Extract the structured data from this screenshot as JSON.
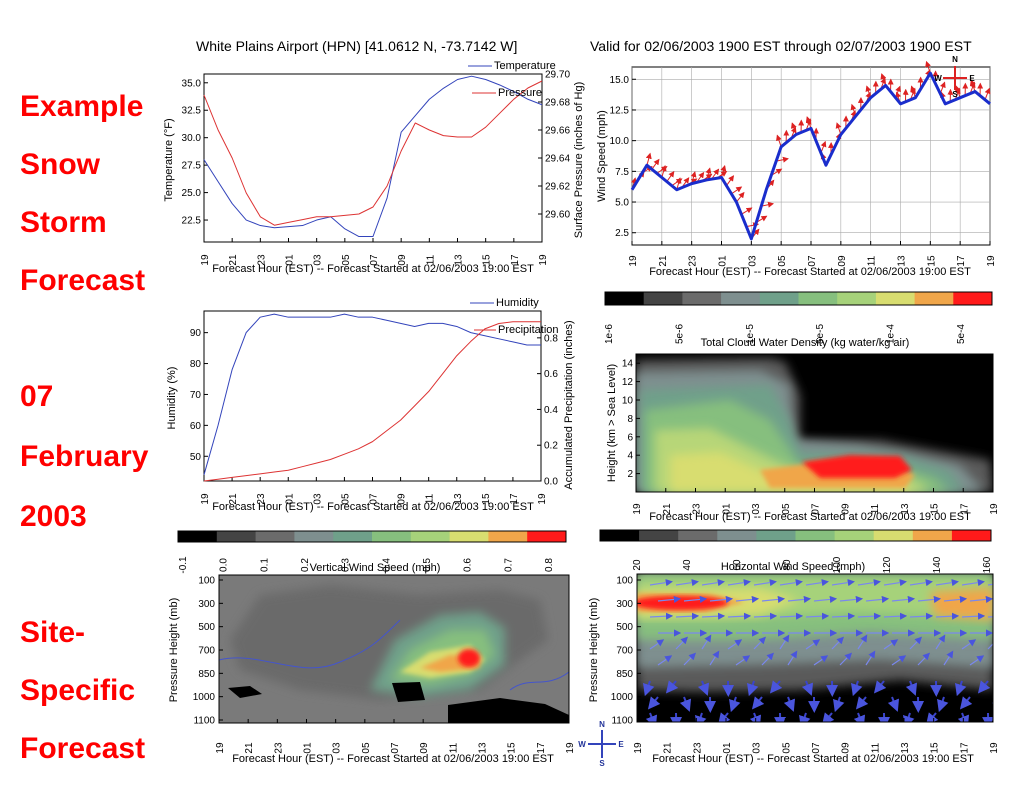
{
  "header": {
    "station": "White Plains Airport (HPN) [41.0612 N, -73.7142 W]",
    "valid": "Valid for 02/06/2003 1900 EST through 02/07/2003 1900 EST"
  },
  "side_labels": [
    "Example",
    "Snow",
    "Storm",
    "Forecast",
    "07",
    "February",
    "2003",
    "Site-",
    "Specific",
    "Forecast"
  ],
  "compass": {
    "n": "N",
    "s": "S",
    "w": "W",
    "e": "E"
  },
  "shared": {
    "x_ticks": [
      "19",
      "21",
      "23",
      "01",
      "03",
      "05",
      "07",
      "09",
      "11",
      "13",
      "15",
      "17",
      "19"
    ],
    "x_label": "Forecast Hour (EST) -- Forecast Started at 02/06/2003 19:00 EST"
  },
  "chart_data": [
    {
      "id": "temp_pressure",
      "type": "line",
      "x": [
        19,
        20,
        21,
        22,
        23,
        24,
        25,
        26,
        27,
        28,
        29,
        30,
        31,
        32,
        33,
        34,
        35,
        36,
        37,
        38,
        39,
        40,
        41,
        42,
        43
      ],
      "ylabel": "Temperature (°F)",
      "y2label": "Surface Pressure (inches of Hg)",
      "ylim": [
        20.5,
        35.8
      ],
      "y_ticks": [
        22.5,
        25.0,
        27.5,
        30.0,
        32.5,
        35.0
      ],
      "y2lim": [
        29.58,
        29.7
      ],
      "y2_ticks": [
        29.6,
        29.62,
        29.64,
        29.66,
        29.68,
        29.7
      ],
      "series": [
        {
          "name": "Temperature",
          "color": "#3344bb",
          "axis": "left",
          "values": [
            28.0,
            26.0,
            24.0,
            22.5,
            22.0,
            21.8,
            21.9,
            22.0,
            22.5,
            22.8,
            21.7,
            21.0,
            21.0,
            24.5,
            30.5,
            32.0,
            33.5,
            34.5,
            35.3,
            35.6,
            35.3,
            34.8,
            34.2,
            33.5,
            33.0
          ]
        },
        {
          "name": "Pressure",
          "color": "#dd3333",
          "axis": "right",
          "values": [
            29.685,
            29.66,
            29.64,
            29.615,
            29.598,
            29.592,
            29.594,
            29.596,
            29.598,
            29.598,
            29.599,
            29.6,
            29.605,
            29.62,
            29.645,
            29.665,
            29.66,
            29.656,
            29.655,
            29.655,
            29.662,
            29.672,
            29.682,
            29.69,
            29.695
          ]
        }
      ]
    },
    {
      "id": "wind_speed",
      "type": "line",
      "x": [
        19,
        20,
        21,
        22,
        23,
        24,
        25,
        26,
        27,
        28,
        29,
        30,
        31,
        32,
        33,
        34,
        35,
        36,
        37,
        38,
        39,
        40,
        41,
        42,
        43
      ],
      "ylabel": "Wind Speed (mph)",
      "ylim": [
        1.5,
        16.0
      ],
      "y_ticks": [
        2.5,
        5.0,
        7.5,
        10.0,
        12.5,
        15.0
      ],
      "series": [
        {
          "name": "",
          "color": "#1a2dcc",
          "values": [
            6.0,
            8.0,
            7.0,
            6.0,
            6.5,
            6.8,
            7.0,
            5.0,
            2.0,
            6.0,
            9.5,
            10.5,
            11.0,
            8.0,
            10.5,
            12.0,
            13.5,
            14.5,
            13.0,
            13.5,
            15.5,
            13.0,
            13.5,
            14.0,
            13.0
          ]
        }
      ]
    },
    {
      "id": "humidity_precip",
      "type": "line",
      "x": [
        19,
        20,
        21,
        22,
        23,
        24,
        25,
        26,
        27,
        28,
        29,
        30,
        31,
        32,
        33,
        34,
        35,
        36,
        37,
        38,
        39,
        40,
        41,
        42,
        43
      ],
      "ylabel": "Humidity (%)",
      "y2label": "Accumulated Precipitation (inches)",
      "ylim": [
        42,
        97
      ],
      "y_ticks": [
        50,
        60,
        70,
        80,
        90
      ],
      "y2lim": [
        0.0,
        0.95
      ],
      "y2_ticks": [
        0.0,
        0.2,
        0.4,
        0.6,
        0.8
      ],
      "series": [
        {
          "name": "Humidity",
          "color": "#3344bb",
          "axis": "left",
          "values": [
            44,
            60,
            78,
            90,
            95,
            96,
            95,
            95,
            95,
            95,
            96,
            95,
            95,
            94,
            93,
            92,
            93,
            93,
            92,
            90,
            89,
            88,
            87,
            86,
            86
          ]
        },
        {
          "name": "Precipitation",
          "color": "#dd3333",
          "axis": "right",
          "values": [
            0.0,
            0.01,
            0.02,
            0.03,
            0.04,
            0.05,
            0.06,
            0.08,
            0.1,
            0.12,
            0.15,
            0.18,
            0.22,
            0.28,
            0.34,
            0.42,
            0.5,
            0.6,
            0.7,
            0.78,
            0.85,
            0.88,
            0.89,
            0.89,
            0.89
          ]
        }
      ]
    },
    {
      "id": "cloud_water",
      "type": "heatmap",
      "colorbar_title": "Total Cloud Water Density (kg water/kg air)",
      "colorbar_ticks": [
        "1e-6",
        "5e-6",
        "1e-5",
        "5e-5",
        "1e-4",
        "5e-4"
      ],
      "ylabel": "Height (km > Sea Level)",
      "y_ticks": [
        2,
        4,
        6,
        8,
        10,
        12,
        14
      ],
      "ylim": [
        0,
        15
      ]
    },
    {
      "id": "vertical_wind",
      "type": "heatmap",
      "colorbar_title": "Vertical Wind Speed (mph)",
      "colorbar_ticks": [
        "-0.1",
        "0.0",
        "0.1",
        "0.2",
        "0.3",
        "0.4",
        "0.5",
        "0.6",
        "0.7",
        "0.8"
      ],
      "ylabel": "Pressure Height (mb)",
      "y_ticks": [
        "100",
        "300",
        "500",
        "700",
        "850",
        "1000",
        "1100"
      ]
    },
    {
      "id": "horizontal_wind",
      "type": "heatmap",
      "colorbar_title": "Horizontal Wind Speed (mph)",
      "colorbar_ticks": [
        "20",
        "40",
        "60",
        "80",
        "100",
        "120",
        "140",
        "160"
      ],
      "ylabel": "Pressure Height (mb)",
      "y_ticks": [
        "100",
        "300",
        "500",
        "700",
        "850",
        "1000",
        "1100"
      ]
    }
  ],
  "colors": {
    "red_label": "#ff0000",
    "bar_scale": [
      "#000000",
      "#444444",
      "#6b6b6b",
      "#7e8f8f",
      "#6fa08a",
      "#86bf7e",
      "#a6d27a",
      "#d8dd70",
      "#f0a64a",
      "#ff1a1a"
    ]
  }
}
